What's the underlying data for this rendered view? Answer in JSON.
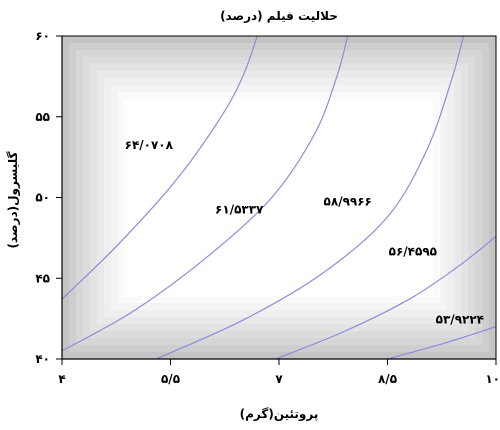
{
  "chart_data": {
    "type": "contour",
    "title": "حلالیت فیلم (درصد)",
    "xlabel": "پروتئین(گرم)",
    "ylabel": "گلیسرول(درصد)",
    "xlim": [
      4,
      10
    ],
    "ylim": [
      40,
      60
    ],
    "x_ticks": [
      {
        "value": 4,
        "label": "۴"
      },
      {
        "value": 5.5,
        "label": "۵/۵"
      },
      {
        "value": 7,
        "label": "۷"
      },
      {
        "value": 8.5,
        "label": "۸/۵"
      },
      {
        "value": 10,
        "label": "۱۰"
      }
    ],
    "y_ticks": [
      {
        "value": 40,
        "label": "۴۰"
      },
      {
        "value": 45,
        "label": "۴۵"
      },
      {
        "value": 50,
        "label": "۵۰"
      },
      {
        "value": 55,
        "label": "۵۵"
      },
      {
        "value": 60,
        "label": "۶۰"
      }
    ],
    "contours": [
      {
        "level": 64.0708,
        "label": "۶۴/۰۷۰۸",
        "label_at": [
          5.2,
          53.0
        ],
        "points": [
          [
            4.0,
            43.7
          ],
          [
            4.8,
            47.2
          ],
          [
            5.6,
            51.2
          ],
          [
            6.2,
            55.0
          ],
          [
            6.5,
            57.5
          ],
          [
            6.7,
            60.0
          ]
        ]
      },
      {
        "level": 61.5337,
        "label": "۶۱/۵۳۳۷",
        "label_at": [
          6.45,
          49.0
        ],
        "points": [
          [
            4.0,
            40.5
          ],
          [
            5.0,
            43.0
          ],
          [
            6.0,
            46.3
          ],
          [
            6.9,
            50.0
          ],
          [
            7.5,
            54.0
          ],
          [
            7.8,
            57.5
          ],
          [
            7.95,
            60.0
          ]
        ]
      },
      {
        "level": 58.9966,
        "label": "۵۸/۹۹۶۶",
        "label_at": [
          7.95,
          49.5
        ],
        "points": [
          [
            5.3,
            40.0
          ],
          [
            6.5,
            42.4
          ],
          [
            7.6,
            45.3
          ],
          [
            8.5,
            48.8
          ],
          [
            9.05,
            53.0
          ],
          [
            9.4,
            57.5
          ],
          [
            9.55,
            60.0
          ]
        ]
      },
      {
        "level": 56.4595,
        "label": "۵۶/۴۵۹۵",
        "label_at": [
          8.85,
          46.4
        ],
        "points": [
          [
            6.95,
            40.0
          ],
          [
            7.9,
            41.7
          ],
          [
            8.8,
            43.7
          ],
          [
            9.5,
            45.8
          ],
          [
            10.0,
            47.6
          ]
        ]
      },
      {
        "level": 53.9224,
        "label": "۵۳/۹۲۲۴",
        "label_at": [
          9.5,
          42.2
        ],
        "points": [
          [
            8.5,
            40.0
          ],
          [
            9.3,
            41.0
          ],
          [
            10.0,
            42.0
          ]
        ]
      }
    ],
    "colors": {
      "contour_line": "#8c8cd8",
      "shade_outer": "#c4c4c4",
      "shade_inner": "#ffffff",
      "axis": "#000000"
    },
    "grid": false
  }
}
